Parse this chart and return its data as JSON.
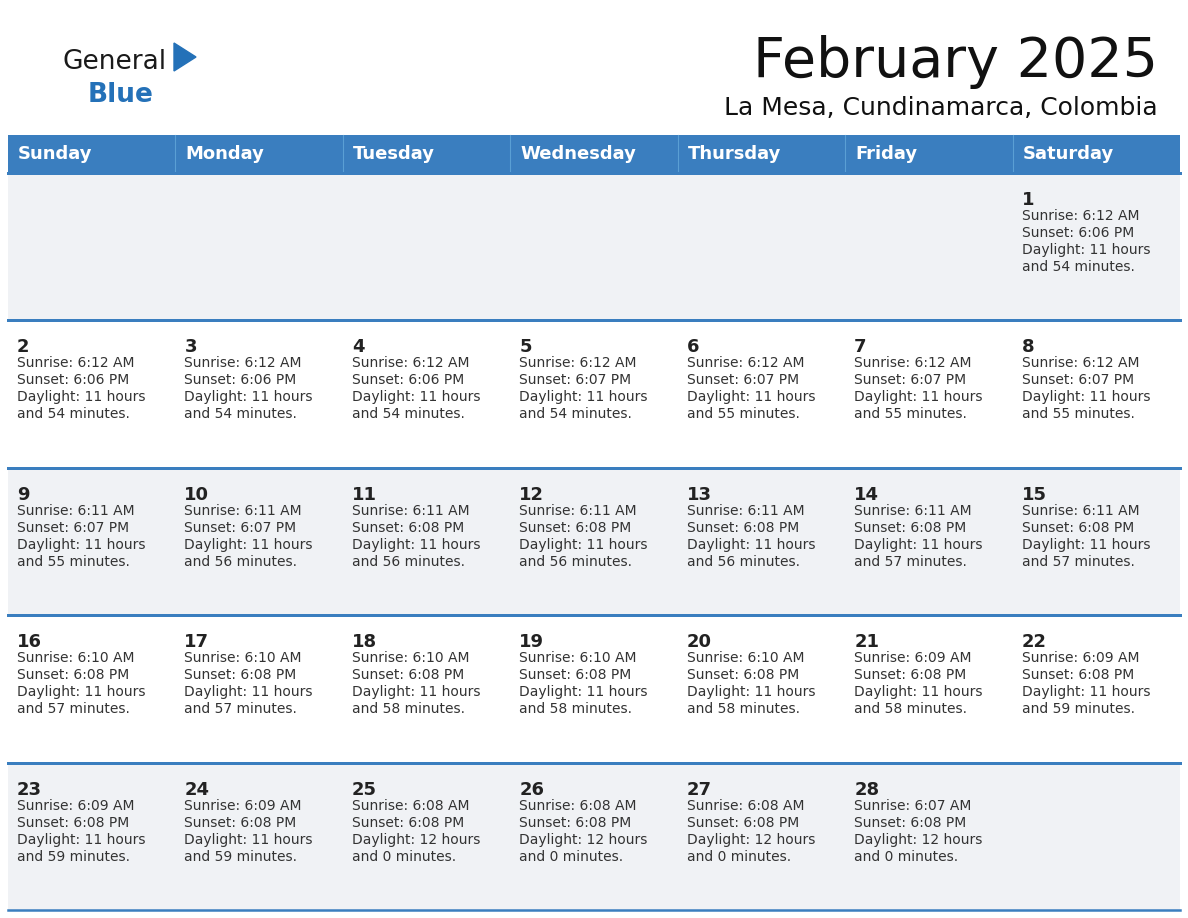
{
  "title": "February 2025",
  "subtitle": "La Mesa, Cundinamarca, Colombia",
  "header_bg": "#3a7ebf",
  "header_text_color": "#ffffff",
  "border_color": "#3a7ebf",
  "cell_bg_odd": "#f0f2f5",
  "cell_bg_even": "#ffffff",
  "text_color": "#333333",
  "day_num_color": "#222222",
  "day_names": [
    "Sunday",
    "Monday",
    "Tuesday",
    "Wednesday",
    "Thursday",
    "Friday",
    "Saturday"
  ],
  "logo_general_color": "#1a1a1a",
  "logo_blue_color": "#2471b8",
  "days": [
    {
      "day": 1,
      "col": 6,
      "row": 0,
      "sunrise": "6:12 AM",
      "sunset": "6:06 PM",
      "daylight_l1": "Daylight: 11 hours",
      "daylight_l2": "and 54 minutes."
    },
    {
      "day": 2,
      "col": 0,
      "row": 1,
      "sunrise": "6:12 AM",
      "sunset": "6:06 PM",
      "daylight_l1": "Daylight: 11 hours",
      "daylight_l2": "and 54 minutes."
    },
    {
      "day": 3,
      "col": 1,
      "row": 1,
      "sunrise": "6:12 AM",
      "sunset": "6:06 PM",
      "daylight_l1": "Daylight: 11 hours",
      "daylight_l2": "and 54 minutes."
    },
    {
      "day": 4,
      "col": 2,
      "row": 1,
      "sunrise": "6:12 AM",
      "sunset": "6:06 PM",
      "daylight_l1": "Daylight: 11 hours",
      "daylight_l2": "and 54 minutes."
    },
    {
      "day": 5,
      "col": 3,
      "row": 1,
      "sunrise": "6:12 AM",
      "sunset": "6:07 PM",
      "daylight_l1": "Daylight: 11 hours",
      "daylight_l2": "and 54 minutes."
    },
    {
      "day": 6,
      "col": 4,
      "row": 1,
      "sunrise": "6:12 AM",
      "sunset": "6:07 PM",
      "daylight_l1": "Daylight: 11 hours",
      "daylight_l2": "and 55 minutes."
    },
    {
      "day": 7,
      "col": 5,
      "row": 1,
      "sunrise": "6:12 AM",
      "sunset": "6:07 PM",
      "daylight_l1": "Daylight: 11 hours",
      "daylight_l2": "and 55 minutes."
    },
    {
      "day": 8,
      "col": 6,
      "row": 1,
      "sunrise": "6:12 AM",
      "sunset": "6:07 PM",
      "daylight_l1": "Daylight: 11 hours",
      "daylight_l2": "and 55 minutes."
    },
    {
      "day": 9,
      "col": 0,
      "row": 2,
      "sunrise": "6:11 AM",
      "sunset": "6:07 PM",
      "daylight_l1": "Daylight: 11 hours",
      "daylight_l2": "and 55 minutes."
    },
    {
      "day": 10,
      "col": 1,
      "row": 2,
      "sunrise": "6:11 AM",
      "sunset": "6:07 PM",
      "daylight_l1": "Daylight: 11 hours",
      "daylight_l2": "and 56 minutes."
    },
    {
      "day": 11,
      "col": 2,
      "row": 2,
      "sunrise": "6:11 AM",
      "sunset": "6:08 PM",
      "daylight_l1": "Daylight: 11 hours",
      "daylight_l2": "and 56 minutes."
    },
    {
      "day": 12,
      "col": 3,
      "row": 2,
      "sunrise": "6:11 AM",
      "sunset": "6:08 PM",
      "daylight_l1": "Daylight: 11 hours",
      "daylight_l2": "and 56 minutes."
    },
    {
      "day": 13,
      "col": 4,
      "row": 2,
      "sunrise": "6:11 AM",
      "sunset": "6:08 PM",
      "daylight_l1": "Daylight: 11 hours",
      "daylight_l2": "and 56 minutes."
    },
    {
      "day": 14,
      "col": 5,
      "row": 2,
      "sunrise": "6:11 AM",
      "sunset": "6:08 PM",
      "daylight_l1": "Daylight: 11 hours",
      "daylight_l2": "and 57 minutes."
    },
    {
      "day": 15,
      "col": 6,
      "row": 2,
      "sunrise": "6:11 AM",
      "sunset": "6:08 PM",
      "daylight_l1": "Daylight: 11 hours",
      "daylight_l2": "and 57 minutes."
    },
    {
      "day": 16,
      "col": 0,
      "row": 3,
      "sunrise": "6:10 AM",
      "sunset": "6:08 PM",
      "daylight_l1": "Daylight: 11 hours",
      "daylight_l2": "and 57 minutes."
    },
    {
      "day": 17,
      "col": 1,
      "row": 3,
      "sunrise": "6:10 AM",
      "sunset": "6:08 PM",
      "daylight_l1": "Daylight: 11 hours",
      "daylight_l2": "and 57 minutes."
    },
    {
      "day": 18,
      "col": 2,
      "row": 3,
      "sunrise": "6:10 AM",
      "sunset": "6:08 PM",
      "daylight_l1": "Daylight: 11 hours",
      "daylight_l2": "and 58 minutes."
    },
    {
      "day": 19,
      "col": 3,
      "row": 3,
      "sunrise": "6:10 AM",
      "sunset": "6:08 PM",
      "daylight_l1": "Daylight: 11 hours",
      "daylight_l2": "and 58 minutes."
    },
    {
      "day": 20,
      "col": 4,
      "row": 3,
      "sunrise": "6:10 AM",
      "sunset": "6:08 PM",
      "daylight_l1": "Daylight: 11 hours",
      "daylight_l2": "and 58 minutes."
    },
    {
      "day": 21,
      "col": 5,
      "row": 3,
      "sunrise": "6:09 AM",
      "sunset": "6:08 PM",
      "daylight_l1": "Daylight: 11 hours",
      "daylight_l2": "and 58 minutes."
    },
    {
      "day": 22,
      "col": 6,
      "row": 3,
      "sunrise": "6:09 AM",
      "sunset": "6:08 PM",
      "daylight_l1": "Daylight: 11 hours",
      "daylight_l2": "and 59 minutes."
    },
    {
      "day": 23,
      "col": 0,
      "row": 4,
      "sunrise": "6:09 AM",
      "sunset": "6:08 PM",
      "daylight_l1": "Daylight: 11 hours",
      "daylight_l2": "and 59 minutes."
    },
    {
      "day": 24,
      "col": 1,
      "row": 4,
      "sunrise": "6:09 AM",
      "sunset": "6:08 PM",
      "daylight_l1": "Daylight: 11 hours",
      "daylight_l2": "and 59 minutes."
    },
    {
      "day": 25,
      "col": 2,
      "row": 4,
      "sunrise": "6:08 AM",
      "sunset": "6:08 PM",
      "daylight_l1": "Daylight: 12 hours",
      "daylight_l2": "and 0 minutes."
    },
    {
      "day": 26,
      "col": 3,
      "row": 4,
      "sunrise": "6:08 AM",
      "sunset": "6:08 PM",
      "daylight_l1": "Daylight: 12 hours",
      "daylight_l2": "and 0 minutes."
    },
    {
      "day": 27,
      "col": 4,
      "row": 4,
      "sunrise": "6:08 AM",
      "sunset": "6:08 PM",
      "daylight_l1": "Daylight: 12 hours",
      "daylight_l2": "and 0 minutes."
    },
    {
      "day": 28,
      "col": 5,
      "row": 4,
      "sunrise": "6:07 AM",
      "sunset": "6:08 PM",
      "daylight_l1": "Daylight: 12 hours",
      "daylight_l2": "and 0 minutes."
    }
  ]
}
